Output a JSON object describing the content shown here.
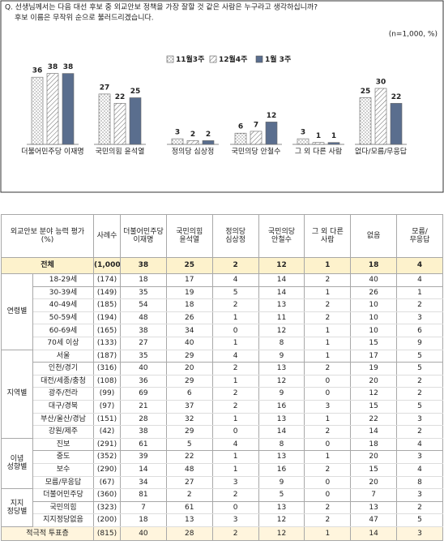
{
  "chart_data": {
    "type": "bar",
    "title": "Q. 선생님께서는 다음 대선 후보 중 외교안보 정책을 가장 잘할 것 같은 사람은 누구라고 생각하십니까?",
    "subtitle": "후보 이름은 무작위 순으로 불러드리겠습니다.",
    "note": "(n=1,000,  %)",
    "categories": [
      "더불어민주당 이재명",
      "국민의힘 윤석열",
      "정의당 심상정",
      "국민의당 안철수",
      "그 외 다른 사람",
      "없다/모름/무응답"
    ],
    "series": [
      {
        "name": "11월3주",
        "color": "#ffffff",
        "pattern": "dots",
        "values": [
          36,
          27,
          3,
          6,
          3,
          25
        ]
      },
      {
        "name": "12월4주",
        "color": "#ffffff",
        "pattern": "hatch",
        "values": [
          38,
          22,
          2,
          7,
          1,
          30
        ]
      },
      {
        "name": "1월 3주",
        "color": "#5a6e8e",
        "pattern": "solid",
        "values": [
          38,
          25,
          2,
          12,
          1,
          22
        ]
      }
    ]
  },
  "table": {
    "header": [
      "외교안보 분야 능력 평가\n(%)",
      "사례수",
      "더불어민주당\n이재명",
      "국민의힘\n윤석열",
      "정의당\n심상정",
      "국민의당\n안철수",
      "그 외 다른\n사람",
      "없음",
      "모름/\n무응답"
    ],
    "total": {
      "label": "전체",
      "n": "(1,000)",
      "values": [
        38,
        25,
        2,
        12,
        1,
        18,
        4
      ]
    },
    "groups": [
      {
        "label": "연령별",
        "rows": [
          {
            "label": "18-29세",
            "n": "(174)",
            "values": [
              18,
              17,
              4,
              14,
              2,
              40,
              4
            ]
          },
          {
            "label": "30-39세",
            "n": "(149)",
            "values": [
              35,
              19,
              5,
              14,
              1,
              26,
              1
            ]
          },
          {
            "label": "40-49세",
            "n": "(185)",
            "values": [
              54,
              18,
              2,
              13,
              2,
              10,
              2
            ]
          },
          {
            "label": "50-59세",
            "n": "(194)",
            "values": [
              48,
              26,
              1,
              11,
              2,
              10,
              3
            ]
          },
          {
            "label": "60-69세",
            "n": "(165)",
            "values": [
              38,
              34,
              0,
              12,
              1,
              10,
              6
            ]
          },
          {
            "label": "70세 이상",
            "n": "(133)",
            "values": [
              27,
              40,
              1,
              8,
              1,
              15,
              9
            ]
          }
        ]
      },
      {
        "label": "지역별",
        "rows": [
          {
            "label": "서울",
            "n": "(187)",
            "values": [
              35,
              29,
              4,
              9,
              1,
              17,
              5
            ]
          },
          {
            "label": "인천/경기",
            "n": "(316)",
            "values": [
              40,
              20,
              2,
              13,
              2,
              19,
              5
            ]
          },
          {
            "label": "대전/세종/충청",
            "n": "(108)",
            "values": [
              36,
              29,
              1,
              12,
              0,
              20,
              2
            ]
          },
          {
            "label": "광주/전라",
            "n": "(99)",
            "values": [
              69,
              6,
              2,
              9,
              0,
              12,
              2
            ]
          },
          {
            "label": "대구/경북",
            "n": "(97)",
            "values": [
              21,
              37,
              2,
              16,
              3,
              15,
              5
            ]
          },
          {
            "label": "부산/울산/경남",
            "n": "(151)",
            "values": [
              28,
              32,
              1,
              13,
              1,
              22,
              3
            ]
          },
          {
            "label": "강원/제주",
            "n": "(42)",
            "values": [
              38,
              29,
              0,
              14,
              2,
              14,
              2
            ]
          }
        ]
      },
      {
        "label": "이념\n성향별",
        "rows": [
          {
            "label": "진보",
            "n": "(291)",
            "values": [
              61,
              5,
              4,
              8,
              0,
              18,
              4
            ]
          },
          {
            "label": "중도",
            "n": "(352)",
            "values": [
              39,
              22,
              1,
              13,
              1,
              20,
              3
            ]
          },
          {
            "label": "보수",
            "n": "(290)",
            "values": [
              14,
              48,
              1,
              16,
              2,
              15,
              4
            ]
          },
          {
            "label": "모름/무응답",
            "n": "(67)",
            "values": [
              34,
              27,
              3,
              9,
              0,
              20,
              8
            ]
          }
        ]
      },
      {
        "label": "지지\n정당별",
        "rows": [
          {
            "label": "더불어민주당",
            "n": "(360)",
            "values": [
              81,
              2,
              2,
              5,
              0,
              7,
              3
            ]
          },
          {
            "label": "국민의힘",
            "n": "(323)",
            "values": [
              7,
              61,
              0,
              13,
              2,
              13,
              2
            ]
          },
          {
            "label": "지지정당없음",
            "n": "(200)",
            "values": [
              18,
              13,
              3,
              12,
              2,
              47,
              5
            ]
          }
        ]
      }
    ],
    "footer": {
      "label": "적극적 투표층",
      "n": "(815)",
      "values": [
        40,
        28,
        2,
        12,
        1,
        14,
        3
      ]
    }
  }
}
